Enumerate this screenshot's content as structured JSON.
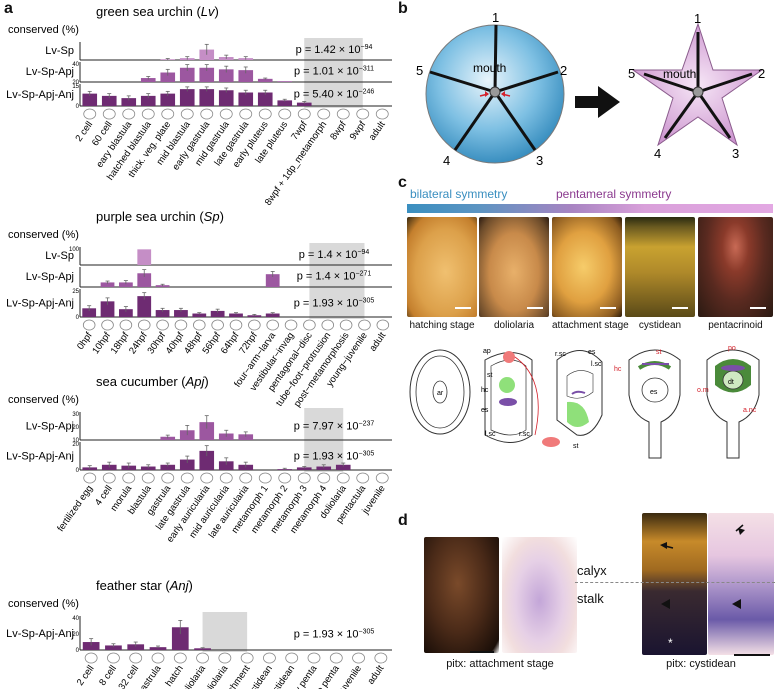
{
  "panels": {
    "a": "a",
    "b": "b",
    "c": "c",
    "d": "d"
  },
  "a": {
    "charts": [
      {
        "title_pre": "green sea urchin (",
        "title_it": "Lv",
        "title_post": ")",
        "ylab": "conserved (%)",
        "rows": [
          {
            "label": "Lv-Sp",
            "p_base": "p = 1.42 × 10",
            "p_exp": "−94",
            "ticks": []
          },
          {
            "label": "Lv-Sp-Apj",
            "p_base": "p = 1.01 × 10",
            "p_exp": "−311",
            "ticks": [
              "40",
              "20"
            ]
          },
          {
            "label": "Lv-Sp-Apj-Anj",
            "p_base": "p = 5.40 × 10",
            "p_exp": "−246",
            "ticks": [
              "15",
              "0"
            ]
          }
        ],
        "categories": [
          "2 cell",
          "60 cell",
          "eary blastula",
          "hatched blastula",
          "thick. veg. plate",
          "mid blastula",
          "early gastrula",
          "mid gastrula",
          "late gastrula",
          "early pluteus",
          "late pluteus",
          "7wpf",
          "8wpf + 1dp_metamorph",
          "8wpf",
          "9wpf",
          "adult"
        ],
        "series": [
          {
            "values": [
              0,
              0,
              0,
              0,
              2,
              5,
              28,
              8,
              5,
              0,
              0,
              0,
              0,
              0,
              0,
              0
            ],
            "err": [
              0,
              0,
              0,
              0,
              2,
              4,
              14,
              5,
              4,
              0,
              0,
              0,
              0,
              0,
              0,
              0
            ]
          },
          {
            "values": [
              0,
              0,
              0,
              5,
              12,
              18,
              18,
              16,
              15,
              4,
              1,
              0,
              0,
              0,
              0,
              0
            ],
            "err": [
              0,
              0,
              0,
              2,
              4,
              4,
              4,
              4,
              4,
              1,
              0,
              0,
              0,
              0,
              0,
              0
            ]
          },
          {
            "values": [
              11,
              9,
              7,
              9,
              11,
              15,
              15,
              14,
              12,
              12,
              5,
              3,
              0,
              0,
              0,
              0
            ],
            "err": [
              2,
              2,
              2,
              2,
              2,
              2,
              2,
              2,
              2,
              2,
              1,
              1,
              0,
              0,
              0,
              0
            ]
          }
        ],
        "shade": [
          11.5,
          14.5
        ]
      },
      {
        "title_pre": "purple sea urchin (",
        "title_it": "Sp",
        "title_post": ")",
        "ylab": "conserved (%)",
        "rows": [
          {
            "label": "Lv-Sp",
            "p_base": "p = 1.4 × 10",
            "p_exp": "−94",
            "ticks": [
              "100"
            ]
          },
          {
            "label": "Lv-Sp-Apj",
            "p_base": "p = 1.4 × 10",
            "p_exp": "−271",
            "ticks": []
          },
          {
            "label": "Lv-Sp-Apj-Anj",
            "p_base": "p = 1.93 × 10",
            "p_exp": "−305",
            "ticks": [
              "25",
              "0"
            ]
          }
        ],
        "categories": [
          "0hpf",
          "10hpf",
          "18hpf",
          "24hpf",
          "30hpf",
          "40hpf",
          "48hpf",
          "56hpf",
          "64hpf",
          "72hpf",
          "four−arm−larva",
          "vestibular−invag",
          "pentagonal−disc",
          "tube−foot−protrusion",
          "post−metamorphosis",
          "young−juvenile",
          "adult"
        ],
        "series": [
          {
            "values": [
              0,
              0,
              0,
              100,
              0,
              0,
              0,
              0,
              0,
              0,
              0,
              0,
              0,
              0,
              0,
              0,
              0
            ],
            "err": [
              0,
              0,
              0,
              0,
              0,
              0,
              0,
              0,
              0,
              0,
              0,
              0,
              0,
              0,
              0,
              0,
              0
            ]
          },
          {
            "values": [
              0,
              10,
              10,
              30,
              4,
              0,
              0,
              0,
              0,
              0,
              28,
              0,
              0,
              0,
              0,
              0,
              0
            ],
            "err": [
              0,
              3,
              4,
              8,
              2,
              0,
              0,
              0,
              0,
              0,
              6,
              0,
              0,
              0,
              0,
              0,
              0
            ]
          },
          {
            "values": [
              10,
              18,
              9,
              24,
              8,
              8,
              4,
              7,
              4,
              2,
              4,
              0,
              0,
              0,
              0,
              0,
              0
            ],
            "err": [
              3,
              4,
              3,
              4,
              2,
              2,
              1,
              2,
              1,
              1,
              1,
              0,
              0,
              0,
              0,
              0,
              0
            ]
          }
        ],
        "shade": [
          12.5,
          15.5
        ]
      },
      {
        "title_pre": "sea cucumber (",
        "title_it": "Apj",
        "title_post": ")",
        "ylab": "conserved (%)",
        "rows": [
          {
            "label": "Lv-Sp-Apj",
            "p_base": "p = 7.97 × 10",
            "p_exp": "−237",
            "ticks": [
              "30",
              "20",
              "10"
            ]
          },
          {
            "label": "Lv-Sp-Apj-Anj",
            "p_base": "p = 1.93 × 10",
            "p_exp": "−305",
            "ticks": [
              "20",
              "0"
            ]
          }
        ],
        "categories": [
          "fertilized egg",
          "4 cell",
          "morula",
          "blastula",
          "gastrula",
          "late gastrula",
          "early auricularia",
          "mid auricularia",
          "late auricularia",
          "metamorph 1",
          "metamorph 2",
          "metamorph 3",
          "metamorph 4",
          "doliolaria",
          "pentactula",
          "juvenile"
        ],
        "series": [
          {
            "values": [
              0,
              0,
              0,
              0,
              4,
              12,
              22,
              8,
              7,
              0,
              0,
              0,
              0,
              0,
              0,
              0
            ],
            "err": [
              0,
              0,
              0,
              0,
              2,
              6,
              8,
              4,
              3,
              0,
              0,
              0,
              0,
              0,
              0,
              0
            ]
          },
          {
            "values": [
              3,
              6,
              5,
              4,
              6,
              12,
              22,
              10,
              6,
              0,
              1,
              3,
              4,
              6,
              0,
              0
            ],
            "err": [
              2,
              3,
              3,
              2,
              2,
              4,
              6,
              4,
              3,
              0,
              1,
              1,
              2,
              2,
              0,
              0
            ]
          }
        ],
        "shade": [
          11.5,
          13.5
        ]
      },
      {
        "title_pre": "feather star (",
        "title_it": "Anj",
        "title_post": ")",
        "ylab": "conserved (%)",
        "rows": [
          {
            "label": "Lv-Sp-Apj-Anj",
            "p_base": "p = 1.93 × 10",
            "p_exp": "−305",
            "ticks": [
              "40",
              "20",
              "0"
            ]
          }
        ],
        "categories": [
          "2 cell",
          "8 cell",
          "32 cell",
          "gastrula",
          "hatch",
          "early doliolaria",
          "doliolaria",
          "attachment",
          "early cystidean",
          "Late cystidean",
          "Early penta",
          "Late penta",
          "juvenile",
          "adult"
        ],
        "series": [
          {
            "values": [
              14,
              8,
              10,
              5,
              40,
              3,
              0,
              0,
              0,
              0,
              0,
              0,
              0,
              0
            ],
            "err": [
              6,
              3,
              4,
              2,
              12,
              1,
              0,
              0,
              0,
              0,
              0,
              0,
              0,
              0
            ]
          }
        ],
        "shade": [
          5.5,
          7.5
        ]
      }
    ]
  },
  "b": {
    "left_numbers": [
      "1",
      "2",
      "3",
      "4",
      "5"
    ],
    "left_mouth": "mouth",
    "right_numbers": [
      "1",
      "2",
      "3",
      "4",
      "5"
    ],
    "right_mouth": "mouth"
  },
  "c": {
    "bilateral": "bilateral symmetry",
    "pentameral": "pentameral symmetry",
    "stages": [
      "hatching stage",
      "doliolaria",
      "attachment stage",
      "cystidean",
      "pentacrinoid"
    ],
    "schem_labels": {
      "ar": "ar",
      "ap": "ap",
      "st": "st",
      "hc": "hc",
      "es": "es",
      "lsc": "l.sc",
      "rsc": "r.sc",
      "rsc2": "r.sc",
      "es2": "es",
      "lsc2": "l.sc",
      "st2": "st",
      "hc2": "hc",
      "st3": "st",
      "es3": "es",
      "po": "po",
      "om": "o.m",
      "dt": "dt",
      "anc": "a.nc"
    }
  },
  "d": {
    "left_caption": "pitx: attachment stage",
    "right_caption": "pitx: cystidean",
    "calyx": "calyx",
    "stalk": "stalk",
    "asterisk": "*"
  },
  "colors": {
    "bar_light": "#c58ec6",
    "bar_mid": "#9c57a0",
    "bar_dark": "#6e2b72",
    "shade": "#d9d9d9",
    "blue": "#3a8fc0",
    "pink": "#d9a0da"
  }
}
